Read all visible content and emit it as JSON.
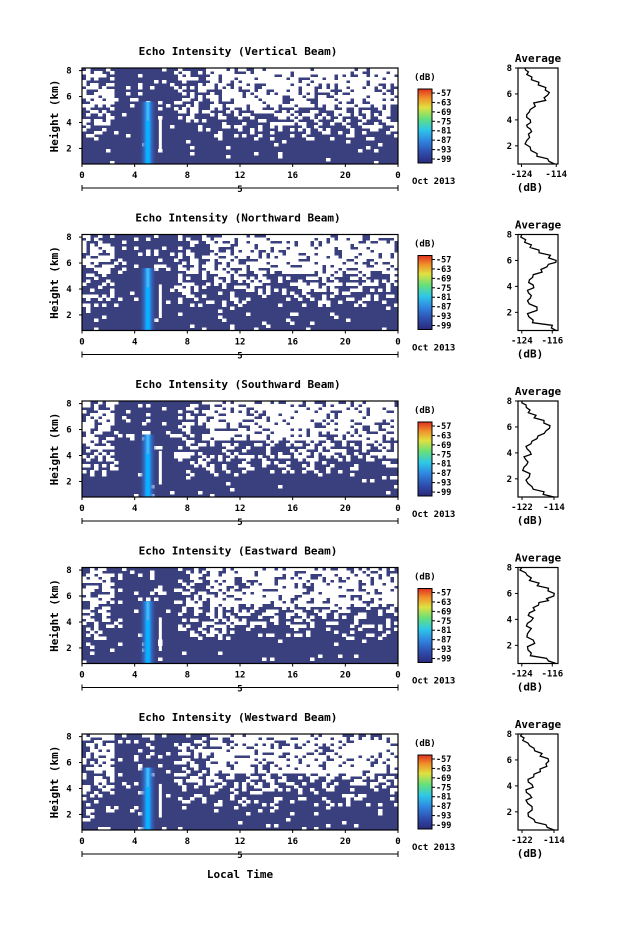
{
  "chart_data": {
    "type": "heatmap",
    "panels": [
      {
        "title": "Echo Intensity (Vertical Beam)",
        "ylabel": "Height (km)",
        "yticks": [
          "2",
          "4",
          "6",
          "8"
        ],
        "xticks": [
          "0",
          "4",
          "8",
          "12",
          "16",
          "20",
          "0"
        ],
        "day_marker": "5",
        "date_label": "Oct 2013",
        "colorbar": {
          "unit": "(dB)",
          "labels": [
            "-57",
            "-63",
            "-69",
            "-75",
            "-81",
            "-87",
            "-93",
            "-99"
          ]
        },
        "average": {
          "title": "Average",
          "xticks": [
            "-124",
            "-114"
          ],
          "xlabel": "(dB)",
          "yticks": [
            "2",
            "4",
            "6",
            "8"
          ],
          "xlim": [
            -125,
            -113.5
          ],
          "profile": [
            [
              -114.5,
              0.6
            ],
            [
              -116.5,
              1.0
            ],
            [
              -119.5,
              1.4
            ],
            [
              -121.5,
              1.9
            ],
            [
              -122.5,
              2.4
            ],
            [
              -122,
              2.9
            ],
            [
              -121.5,
              3.3
            ],
            [
              -122.5,
              3.6
            ],
            [
              -121.5,
              4.0
            ],
            [
              -122.5,
              4.4
            ],
            [
              -121.5,
              4.8
            ],
            [
              -120.5,
              5.3
            ],
            [
              -117.5,
              5.7
            ],
            [
              -116,
              6.1
            ],
            [
              -117,
              6.5
            ],
            [
              -119,
              6.9
            ],
            [
              -121,
              7.3
            ],
            [
              -122,
              7.7
            ],
            [
              -123,
              8.0
            ]
          ]
        }
      },
      {
        "title": "Echo Intensity (Northward Beam)",
        "ylabel": "Height (km)",
        "yticks": [
          "2",
          "4",
          "6",
          "8"
        ],
        "xticks": [
          "0",
          "4",
          "8",
          "12",
          "16",
          "20",
          "0"
        ],
        "day_marker": "5",
        "date_label": "Oct 2013",
        "colorbar": {
          "unit": "(dB)",
          "labels": [
            "-57",
            "-63",
            "-69",
            "-75",
            "-81",
            "-87",
            "-93",
            "-99"
          ]
        },
        "average": {
          "title": "Average",
          "xticks": [
            "-124",
            "-116"
          ],
          "xlabel": "(dB)",
          "yticks": [
            "2",
            "4",
            "6",
            "8"
          ],
          "xlim": [
            -125,
            -114.5
          ],
          "profile": [
            [
              -115,
              0.6
            ],
            [
              -116,
              1.0
            ],
            [
              -121,
              1.4
            ],
            [
              -122.5,
              1.9
            ],
            [
              -120,
              2.4
            ],
            [
              -122.5,
              2.9
            ],
            [
              -121.5,
              3.3
            ],
            [
              -122.5,
              3.7
            ],
            [
              -121,
              4.1
            ],
            [
              -122,
              4.5
            ],
            [
              -121,
              4.9
            ],
            [
              -119,
              5.3
            ],
            [
              -117,
              5.7
            ],
            [
              -115,
              6.0
            ],
            [
              -116.5,
              6.4
            ],
            [
              -119.5,
              6.8
            ],
            [
              -121.5,
              7.2
            ],
            [
              -123,
              7.6
            ],
            [
              -124,
              8.0
            ]
          ]
        }
      },
      {
        "title": "Echo Intensity (Southward Beam)",
        "ylabel": "Height (km)",
        "yticks": [
          "2",
          "4",
          "6",
          "8"
        ],
        "xticks": [
          "0",
          "4",
          "8",
          "12",
          "16",
          "20",
          "0"
        ],
        "day_marker": "5",
        "date_label": "Oct 2013",
        "colorbar": {
          "unit": "(dB)",
          "labels": [
            "-57",
            "-63",
            "-69",
            "-75",
            "-81",
            "-87",
            "-93",
            "-99"
          ]
        },
        "average": {
          "title": "Average",
          "xticks": [
            "-122",
            "-114"
          ],
          "xlabel": "(dB)",
          "yticks": [
            "2",
            "4",
            "6",
            "8"
          ],
          "xlim": [
            -123,
            -113
          ],
          "profile": [
            [
              -114,
              0.6
            ],
            [
              -116.5,
              1.0
            ],
            [
              -119.5,
              1.4
            ],
            [
              -121,
              1.9
            ],
            [
              -120,
              2.4
            ],
            [
              -121.5,
              2.9
            ],
            [
              -120.5,
              3.3
            ],
            [
              -121.5,
              3.7
            ],
            [
              -120,
              4.1
            ],
            [
              -121,
              4.5
            ],
            [
              -119.5,
              4.9
            ],
            [
              -118,
              5.3
            ],
            [
              -116,
              5.7
            ],
            [
              -115,
              6.1
            ],
            [
              -116.5,
              6.5
            ],
            [
              -118.5,
              6.9
            ],
            [
              -120,
              7.3
            ],
            [
              -121,
              7.7
            ],
            [
              -122,
              8.0
            ]
          ]
        }
      },
      {
        "title": "Echo Intensity (Eastward Beam)",
        "ylabel": "Height (km)",
        "yticks": [
          "2",
          "4",
          "6",
          "8"
        ],
        "xticks": [
          "0",
          "4",
          "8",
          "12",
          "16",
          "20",
          "0"
        ],
        "day_marker": "5",
        "date_label": "Oct 2013",
        "colorbar": {
          "unit": "(dB)",
          "labels": [
            "-57",
            "-63",
            "-69",
            "-75",
            "-81",
            "-87",
            "-93",
            "-99"
          ]
        },
        "average": {
          "title": "Average",
          "xticks": [
            "-124",
            "-116"
          ],
          "xlabel": "(dB)",
          "yticks": [
            "2",
            "4",
            "6",
            "8"
          ],
          "xlim": [
            -125,
            -114.5
          ],
          "profile": [
            [
              -115,
              0.6
            ],
            [
              -117.5,
              1.0
            ],
            [
              -121.5,
              1.4
            ],
            [
              -122.5,
              1.9
            ],
            [
              -121,
              2.4
            ],
            [
              -122.5,
              2.9
            ],
            [
              -121.5,
              3.3
            ],
            [
              -122.5,
              3.7
            ],
            [
              -121,
              4.1
            ],
            [
              -122,
              4.5
            ],
            [
              -121,
              4.9
            ],
            [
              -119.5,
              5.3
            ],
            [
              -117.5,
              5.6
            ],
            [
              -115.5,
              6.0
            ],
            [
              -117,
              6.4
            ],
            [
              -119.5,
              6.8
            ],
            [
              -121.5,
              7.2
            ],
            [
              -123,
              7.6
            ],
            [
              -124,
              8.0
            ]
          ]
        }
      },
      {
        "title": "Echo Intensity (Westward Beam)",
        "ylabel": "Height (km)",
        "yticks": [
          "2",
          "4",
          "6",
          "8"
        ],
        "xticks": [
          "0",
          "4",
          "8",
          "12",
          "16",
          "20",
          "0"
        ],
        "day_marker": "5",
        "date_label": "Oct 2013",
        "colorbar": {
          "unit": "(dB)",
          "labels": [
            "-57",
            "-63",
            "-69",
            "-75",
            "-81",
            "-87",
            "-93",
            "-99"
          ]
        },
        "average": {
          "title": "Average",
          "xticks": [
            "-122",
            "-114"
          ],
          "xlabel": "(dB)",
          "yticks": [
            "2",
            "4",
            "6",
            "8"
          ],
          "xlim": [
            -123,
            -113
          ],
          "profile": [
            [
              -114,
              0.6
            ],
            [
              -116,
              1.0
            ],
            [
              -119,
              1.4
            ],
            [
              -120.5,
              1.9
            ],
            [
              -119.5,
              2.4
            ],
            [
              -121,
              2.9
            ],
            [
              -120,
              3.3
            ],
            [
              -121,
              3.7
            ],
            [
              -119.5,
              4.1
            ],
            [
              -120.5,
              4.5
            ],
            [
              -119,
              4.9
            ],
            [
              -117.5,
              5.3
            ],
            [
              -116,
              5.7
            ],
            [
              -115.5,
              6.1
            ],
            [
              -117,
              6.5
            ],
            [
              -119,
              6.9
            ],
            [
              -120.5,
              7.3
            ],
            [
              -121.5,
              7.7
            ],
            [
              -122,
              8.0
            ]
          ]
        }
      }
    ],
    "x_axis_label": "Local Time",
    "colors": {
      "background_echo": "#3a3f7e",
      "bright_echo": "#00b0ff",
      "white_gap": "#ffffff"
    }
  }
}
